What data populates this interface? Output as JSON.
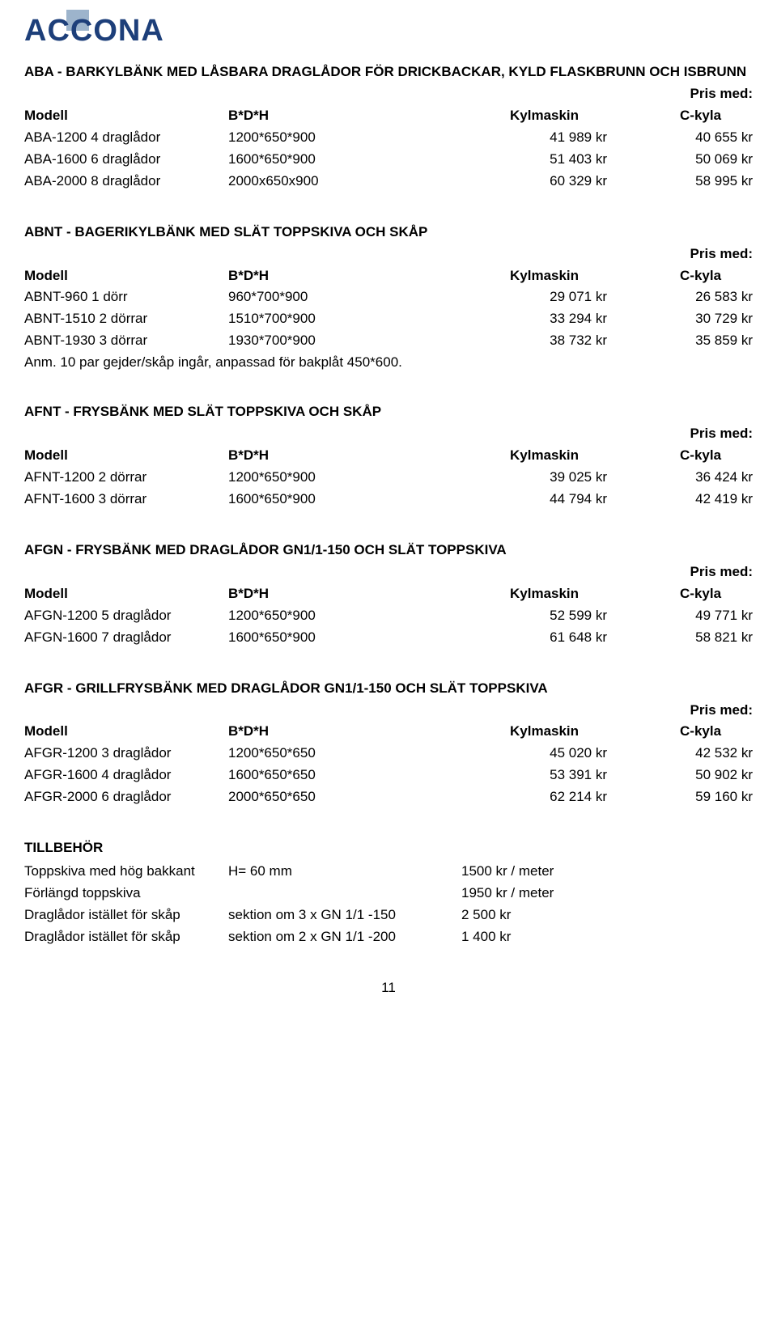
{
  "logo": {
    "text": "ACCONA",
    "primary_color": "#1d3f7a",
    "accent_color": "#9db4cc"
  },
  "sections": [
    {
      "title": "ABA - BARKYLBÄNK MED LÅSBARA DRAGLÅDOR FÖR DRICKBACKAR, KYLD FLASKBRUNN OCH ISBRUNN",
      "price_label": "Pris med:",
      "headers": [
        "Modell",
        "B*D*H",
        "Kylmaskin",
        "C-kyla"
      ],
      "rows": [
        [
          "ABA-1200  4 draglådor",
          "1200*650*900",
          "41 989 kr",
          "40 655 kr"
        ],
        [
          "ABA-1600  6 draglådor",
          "1600*650*900",
          "51 403 kr",
          "50 069 kr"
        ],
        [
          "ABA-2000  8 draglådor",
          "2000x650x900",
          "60 329 kr",
          "58 995 kr"
        ]
      ]
    },
    {
      "title": "ABNT - BAGERIKYLBÄNK MED SLÄT TOPPSKIVA OCH SKÅP",
      "price_label": "Pris med:",
      "headers": [
        "Modell",
        "B*D*H",
        "Kylmaskin",
        "C-kyla"
      ],
      "rows": [
        [
          "ABNT-960    1 dörr",
          "960*700*900",
          "29 071 kr",
          "26 583 kr"
        ],
        [
          "ABNT-1510  2 dörrar",
          "1510*700*900",
          "33 294 kr",
          "30 729 kr"
        ],
        [
          "ABNT-1930  3 dörrar",
          "1930*700*900",
          "38 732 kr",
          "35 859 kr"
        ]
      ],
      "note": "Anm. 10 par gejder/skåp ingår, anpassad för bakplåt 450*600."
    },
    {
      "title": "AFNT - FRYSBÄNK MED SLÄT TOPPSKIVA OCH SKÅP",
      "price_label": "Pris med:",
      "headers": [
        "Modell",
        "B*D*H",
        "Kylmaskin",
        "C-kyla"
      ],
      "rows": [
        [
          "AFNT-1200  2 dörrar",
          "1200*650*900",
          "39 025 kr",
          "36 424 kr"
        ],
        [
          "AFNT-1600  3 dörrar",
          "1600*650*900",
          "44 794 kr",
          "42 419 kr"
        ]
      ]
    },
    {
      "title": "AFGN - FRYSBÄNK MED DRAGLÅDOR GN1/1-150 OCH SLÄT TOPPSKIVA",
      "price_label": "Pris med:",
      "headers": [
        "Modell",
        "B*D*H",
        "Kylmaskin",
        "C-kyla"
      ],
      "rows": [
        [
          "AFGN-1200  5 draglådor",
          "1200*650*900",
          "52 599 kr",
          "49 771 kr"
        ],
        [
          "AFGN-1600  7 draglådor",
          "1600*650*900",
          "61 648 kr",
          "58 821 kr"
        ]
      ]
    },
    {
      "title": "AFGR - GRILLFRYSBÄNK MED DRAGLÅDOR GN1/1-150 OCH SLÄT TOPPSKIVA",
      "price_label": "Pris med:",
      "headers": [
        "Modell",
        "B*D*H",
        "Kylmaskin",
        "C-kyla"
      ],
      "rows": [
        [
          "AFGR-1200  3 draglådor",
          "1200*650*650",
          "45 020 kr",
          "42 532 kr"
        ],
        [
          "AFGR-1600  4 draglådor",
          "1600*650*650",
          "53 391 kr",
          "50 902 kr"
        ],
        [
          "AFGR-2000  6 draglådor",
          "2000*650*650",
          "62 214 kr",
          "59 160 kr"
        ]
      ]
    }
  ],
  "tillbehor": {
    "title": "TILLBEHÖR",
    "rows": [
      [
        "Toppskiva med hög bakkant",
        "H= 60 mm",
        "1500 kr / meter"
      ],
      [
        "Förlängd toppskiva",
        "",
        "1950 kr / meter"
      ],
      [
        "Draglådor istället för skåp",
        "sektion om 3 x GN 1/1 -150",
        "2 500 kr"
      ],
      [
        "Draglådor istället för skåp",
        "sektion om 2 x GN 1/1 -200",
        "1 400 kr"
      ]
    ]
  },
  "page_number": "11"
}
